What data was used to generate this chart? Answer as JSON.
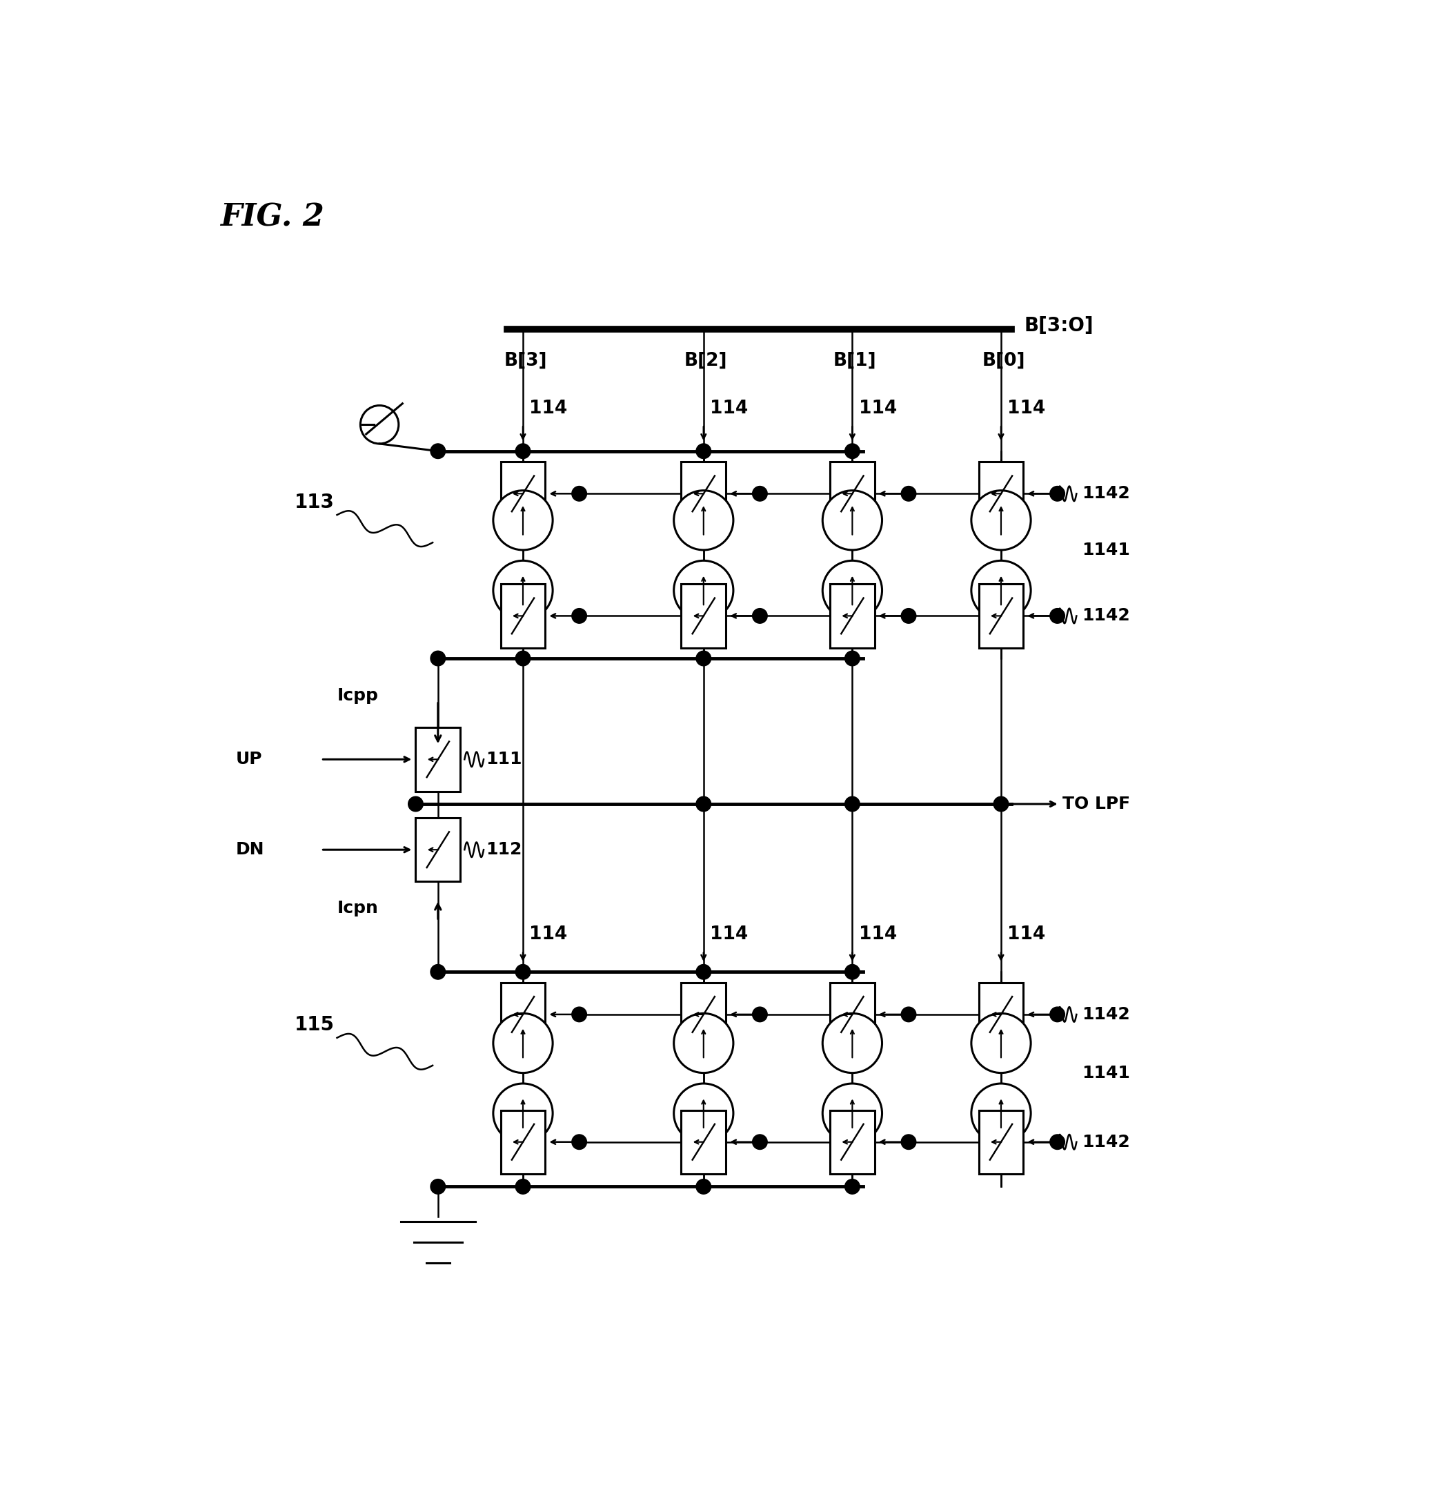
{
  "title": "FIG. 2",
  "fig_width": 20.8,
  "fig_height": 21.88,
  "background_color": "#ffffff",
  "col_labels": [
    "B[3]",
    "B[2]",
    "B[1]",
    "B[0]"
  ],
  "bus_label": "B[3:O]",
  "label_114": "114",
  "label_113": "113",
  "label_115": "115",
  "label_111": "111",
  "label_112": "112",
  "label_1141": "1141",
  "label_1142": "1142",
  "label_Icpp": "Icpp",
  "label_Icpn": "Icpn",
  "label_UP": "UP",
  "label_DN": "DN",
  "label_TOLPF": "TO LPF"
}
